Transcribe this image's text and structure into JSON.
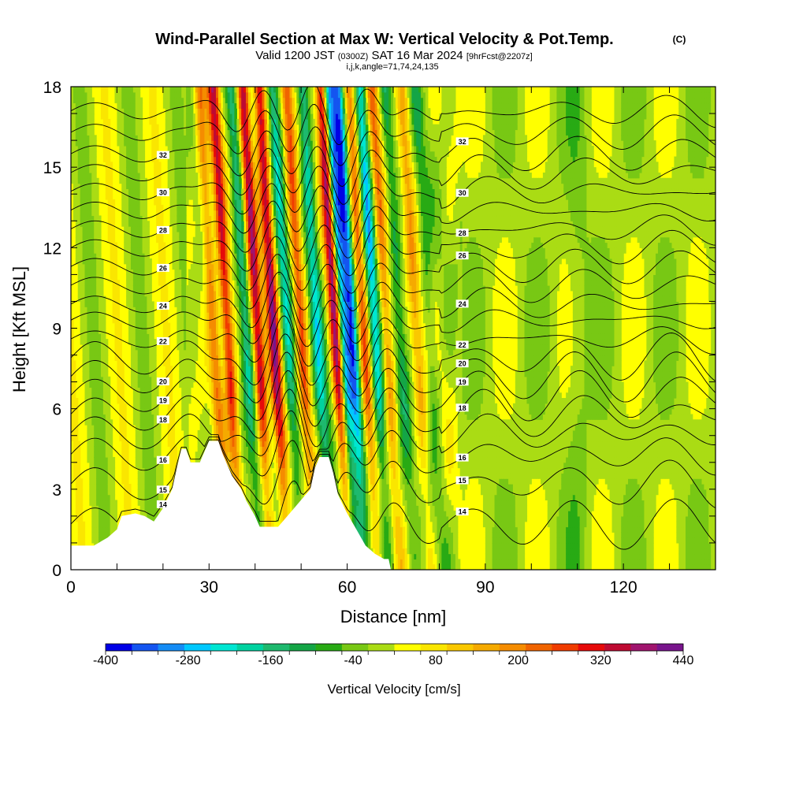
{
  "chart_data": {
    "type": "heatmap",
    "title": "Wind-Parallel Section at Max W: Vertical Velocity & Pot.Temp.",
    "title_mark": "(C)",
    "subtitle": {
      "valid_a": "Valid 1200 JST",
      "valid_b": "(0300Z)",
      "valid_c": "SAT 16 Mar 2024",
      "valid_d": "[9hrFcst@2207z]"
    },
    "indices": "i,j,k,angle=71,74,24,135",
    "xlabel": "Distance [nm]",
    "ylabel": "Height [Kft MSL]",
    "xlim": [
      0,
      140
    ],
    "ylim": [
      0,
      18
    ],
    "x_ticks": [
      "0",
      "30",
      "60",
      "90",
      "120"
    ],
    "y_ticks": [
      "0",
      "3",
      "6",
      "9",
      "12",
      "15",
      "18"
    ],
    "colorbar": {
      "title": "Vertical Velocity [cm/s]",
      "min": -400,
      "max": 440,
      "step": 40,
      "labels": [
        "-400",
        "-280",
        "-160",
        "-40",
        "80",
        "200",
        "320",
        "440"
      ],
      "colors": [
        "#0000e6",
        "#1455f0",
        "#148cf5",
        "#00c8ff",
        "#00e6d2",
        "#00d2a0",
        "#1eb96e",
        "#14a546",
        "#28aa14",
        "#78c814",
        "#aadc14",
        "#ffff00",
        "#fae600",
        "#fac800",
        "#f5aa00",
        "#f58c00",
        "#f06400",
        "#f03c00",
        "#e60a0a",
        "#be0a32",
        "#a0146e",
        "#78148c"
      ]
    },
    "theta_contour_labels": [
      "14",
      "15",
      "16",
      "18",
      "19",
      "20",
      "22",
      "24",
      "26",
      "28",
      "30",
      "32"
    ],
    "wave_columns": [
      {
        "x": 31,
        "w": 200
      },
      {
        "x": 34,
        "w": 330
      },
      {
        "x": 38,
        "w": -180
      },
      {
        "x": 40.5,
        "w": 360
      },
      {
        "x": 44,
        "w": 380
      },
      {
        "x": 47,
        "w": -200
      },
      {
        "x": 50,
        "w": 260
      },
      {
        "x": 53.5,
        "w": -220
      },
      {
        "x": 57.5,
        "w": 420
      },
      {
        "x": 59,
        "w": -320
      },
      {
        "x": 61,
        "w": -360
      },
      {
        "x": 63.5,
        "w": 240
      },
      {
        "x": 66,
        "w": -260
      },
      {
        "x": 68.5,
        "w": 200
      },
      {
        "x": 71.5,
        "w": -120
      },
      {
        "x": 75,
        "w": 150
      },
      {
        "x": 78,
        "w": -80
      },
      {
        "x": 22,
        "w": 120
      },
      {
        "x": 98,
        "w": 120
      },
      {
        "x": 110,
        "w": -80
      }
    ],
    "terrain": [
      [
        0,
        0.9
      ],
      [
        5,
        0.9
      ],
      [
        8,
        1.2
      ],
      [
        10,
        1.5
      ],
      [
        11,
        2.0
      ],
      [
        14,
        2.1
      ],
      [
        16,
        2.0
      ],
      [
        18,
        1.8
      ],
      [
        20,
        2.3
      ],
      [
        22,
        3.0
      ],
      [
        23,
        3.8
      ],
      [
        24,
        4.5
      ],
      [
        25,
        4.5
      ],
      [
        26,
        4.0
      ],
      [
        28,
        4.0
      ],
      [
        30,
        4.8
      ],
      [
        32,
        4.8
      ],
      [
        33,
        4.3
      ],
      [
        35,
        3.5
      ],
      [
        37,
        3.0
      ],
      [
        38,
        2.6
      ],
      [
        40,
        2.0
      ],
      [
        41,
        1.6
      ],
      [
        42,
        1.6
      ],
      [
        44,
        1.6
      ],
      [
        45,
        1.6
      ],
      [
        46,
        1.8
      ],
      [
        48,
        2.2
      ],
      [
        50,
        2.6
      ],
      [
        52,
        3.0
      ],
      [
        53,
        3.8
      ],
      [
        54,
        4.2
      ],
      [
        56,
        4.2
      ],
      [
        57,
        3.6
      ],
      [
        58,
        2.8
      ],
      [
        60,
        2.1
      ],
      [
        62,
        1.5
      ],
      [
        64,
        0.9
      ],
      [
        66,
        0.6
      ],
      [
        68,
        0.4
      ],
      [
        69,
        0.4
      ],
      [
        69.5,
        0
      ]
    ],
    "theta_levels": [
      {
        "v": 14,
        "y": 1.7
      },
      {
        "v": 15,
        "y": 3.2
      },
      {
        "v": 16,
        "y": 4.3
      },
      {
        "v": 17,
        "y": 5.1
      },
      {
        "v": 18,
        "y": 5.8
      },
      {
        "v": 19,
        "y": 6.5
      },
      {
        "v": 20,
        "y": 7.2
      },
      {
        "v": 21,
        "y": 7.9
      },
      {
        "v": 22,
        "y": 8.6
      },
      {
        "v": 23,
        "y": 9.3
      },
      {
        "v": 24,
        "y": 9.9
      },
      {
        "v": 25,
        "y": 10.6
      },
      {
        "v": 26,
        "y": 11.3
      },
      {
        "v": 27,
        "y": 12.0
      },
      {
        "v": 28,
        "y": 12.7
      },
      {
        "v": 29,
        "y": 13.4
      },
      {
        "v": 30,
        "y": 14.1
      },
      {
        "v": 31,
        "y": 14.8
      },
      {
        "v": 32,
        "y": 15.5
      },
      {
        "v": 33,
        "y": 16.3
      },
      {
        "v": 34,
        "y": 17.1
      }
    ]
  }
}
